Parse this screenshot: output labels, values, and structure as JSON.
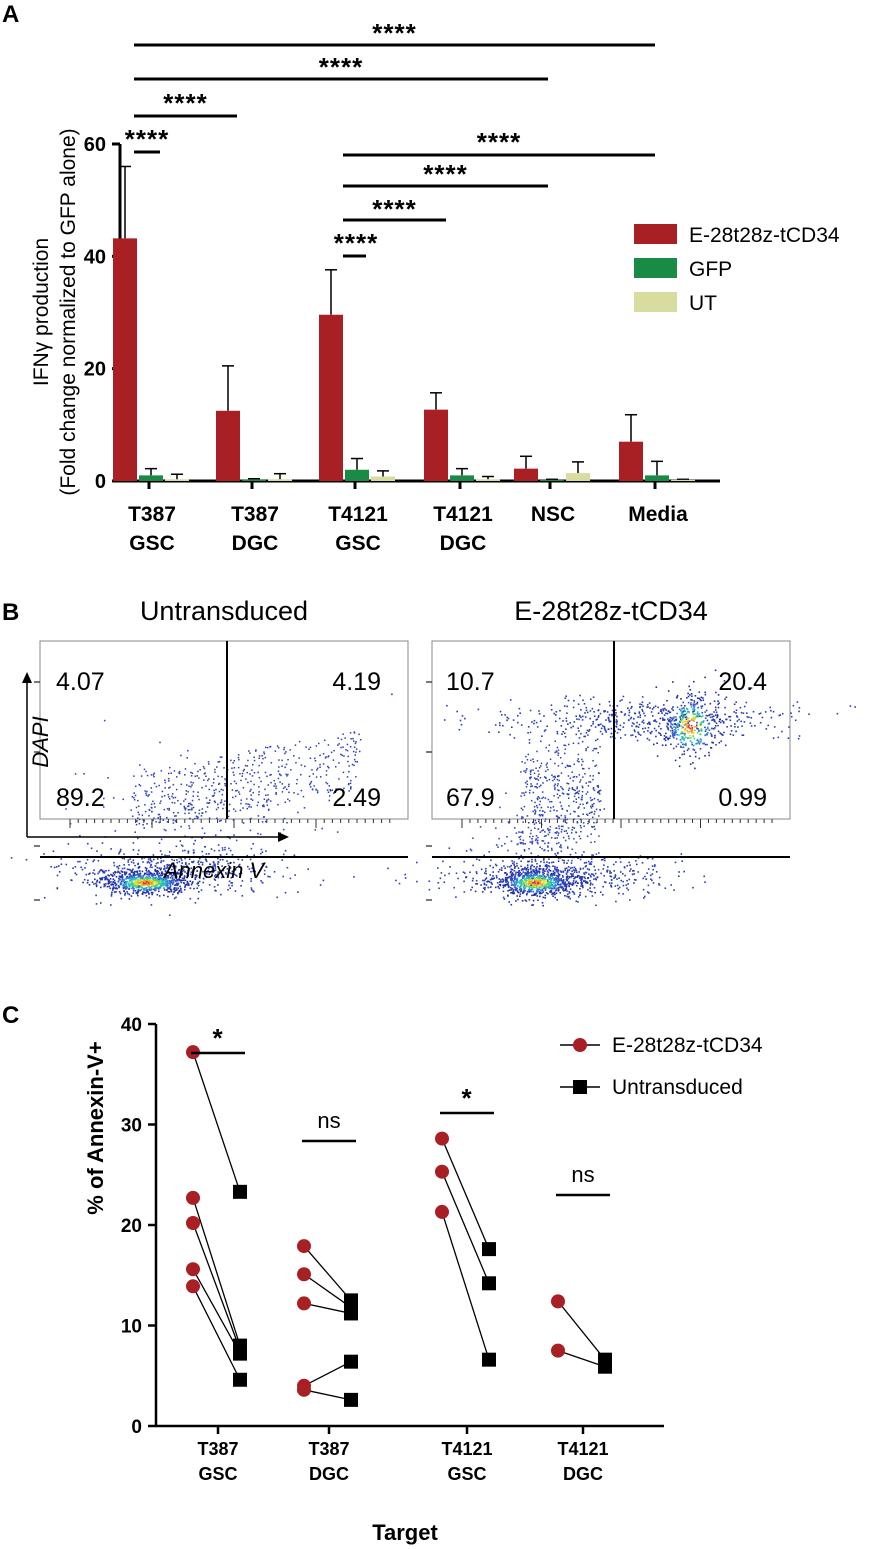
{
  "colors": {
    "car": "#a81f24",
    "gfp": "#1a8a47",
    "ut": "#d8dc9f",
    "black": "#000000",
    "dot_blue": "#2b3fb4"
  },
  "panels": {
    "a": "A",
    "b": "B",
    "c": "C"
  },
  "chart_data": [
    {
      "id": "panel_A",
      "type": "bar",
      "ylabel_line1": "IFNγ production",
      "ylabel_line2": "(Fold change normalized to GFP alone)",
      "ylim": [
        0,
        60
      ],
      "yticks": [
        0,
        20,
        40,
        60
      ],
      "categories": [
        {
          "line1": "T387",
          "line2": "GSC"
        },
        {
          "line1": "T387",
          "line2": "DGC"
        },
        {
          "line1": "T4121",
          "line2": "GSC"
        },
        {
          "line1": "T4121",
          "line2": "DGC"
        },
        {
          "line1": "NSC",
          "line2": ""
        },
        {
          "line1": "Media",
          "line2": ""
        }
      ],
      "series": [
        {
          "name": "E-28t28z-tCD34",
          "color": "#a81f24",
          "values": [
            43.2,
            12.5,
            29.6,
            12.7,
            2.2,
            7.0
          ],
          "errors": [
            12.8,
            8.0,
            8.0,
            3.0,
            2.2,
            4.8
          ]
        },
        {
          "name": "GFP",
          "color": "#1a8a47",
          "values": [
            1.0,
            0.3,
            2.0,
            1.0,
            0.2,
            1.0
          ],
          "errors": [
            1.2,
            0.1,
            2.0,
            1.2,
            0.1,
            2.5
          ]
        },
        {
          "name": "UT",
          "color": "#d8dc9f",
          "values": [
            0.3,
            0.3,
            0.8,
            0.3,
            1.4,
            0.2
          ],
          "errors": [
            0.9,
            1.0,
            1.0,
            0.5,
            2.0,
            0.1
          ]
        }
      ],
      "significance": [
        {
          "from": 0,
          "to": 0,
          "label": "****"
        },
        {
          "from": 0,
          "to": 1,
          "label": "****"
        },
        {
          "from": 0,
          "to": 4,
          "label": "****"
        },
        {
          "from": 0,
          "to": 5,
          "label": "****"
        },
        {
          "from": 2,
          "to": 2,
          "label": "****"
        },
        {
          "from": 2,
          "to": 3,
          "label": "****"
        },
        {
          "from": 2,
          "to": 4,
          "label": "****"
        },
        {
          "from": 2,
          "to": 5,
          "label": "****"
        }
      ],
      "legend": [
        "E-28t28z-tCD34",
        "GFP",
        "UT"
      ],
      "legend_position": "right"
    },
    {
      "id": "panel_B",
      "type": "scatter",
      "subtype": "flow-cytometry-quadrants",
      "xlabel": "Annexin V",
      "ylabel": "DAPI",
      "plots": [
        {
          "title": "Untransduced",
          "quadrants": {
            "top_left": "4.07",
            "top_right": "4.19",
            "bottom_left": "89.2",
            "bottom_right": "2.49"
          }
        },
        {
          "title": "E-28t28z-tCD34",
          "quadrants": {
            "top_left": "10.7",
            "top_right": "20.4",
            "bottom_left": "67.9",
            "bottom_right": "0.99"
          }
        }
      ]
    },
    {
      "id": "panel_C",
      "type": "scatter",
      "subtype": "paired-points",
      "ylabel": "% of Annexin-V+",
      "xlabel": "Target",
      "ylim": [
        0,
        40
      ],
      "yticks": [
        0,
        10,
        20,
        30,
        40
      ],
      "categories": [
        {
          "line1": "T387",
          "line2": "GSC"
        },
        {
          "line1": "T387",
          "line2": "DGC"
        },
        {
          "line1": "T4121",
          "line2": "GSC"
        },
        {
          "line1": "T4121",
          "line2": "DGC"
        }
      ],
      "legend": [
        {
          "name": "E-28t28z-tCD34",
          "marker": "circle",
          "color": "#a81f24"
        },
        {
          "name": "Untransduced",
          "marker": "square",
          "color": "#000000"
        }
      ],
      "pairs": [
        [
          [
            37.2,
            23.3
          ],
          [
            22.7,
            8.0
          ],
          [
            20.2,
            7.6
          ],
          [
            15.6,
            7.2
          ],
          [
            13.9,
            4.6
          ]
        ],
        [
          [
            17.9,
            12.5
          ],
          [
            15.1,
            11.8
          ],
          [
            12.2,
            11.2
          ],
          [
            4.0,
            6.4
          ],
          [
            3.6,
            2.6
          ]
        ],
        [
          [
            28.6,
            17.6
          ],
          [
            25.3,
            14.2
          ],
          [
            21.3,
            6.6
          ]
        ],
        [
          [
            12.4,
            6.6
          ],
          [
            7.5,
            5.9
          ]
        ]
      ],
      "significance": [
        "*",
        "ns",
        "*",
        "ns"
      ]
    }
  ]
}
